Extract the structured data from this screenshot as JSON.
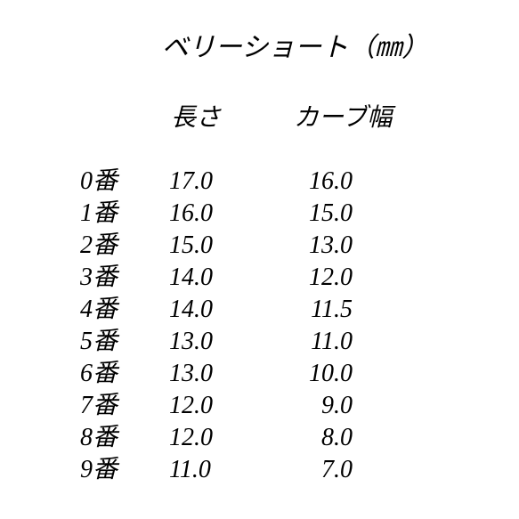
{
  "title": "ベリーショート（㎜）",
  "headers": {
    "length": "長さ",
    "curve": "カーブ幅"
  },
  "rows": [
    {
      "label": "0番",
      "length": "17.0",
      "curve": "16.0"
    },
    {
      "label": "1番",
      "length": "16.0",
      "curve": "15.0"
    },
    {
      "label": "2番",
      "length": "15.0",
      "curve": "13.0"
    },
    {
      "label": "3番",
      "length": "14.0",
      "curve": "12.0"
    },
    {
      "label": "4番",
      "length": "14.0",
      "curve": "11.5"
    },
    {
      "label": "5番",
      "length": "13.0",
      "curve": "11.0"
    },
    {
      "label": "6番",
      "length": "13.0",
      "curve": "10.0"
    },
    {
      "label": "7番",
      "length": "12.0",
      "curve": "9.0"
    },
    {
      "label": "8番",
      "length": "12.0",
      "curve": "8.0"
    },
    {
      "label": "9番",
      "length": "11.0",
      "curve": "7.0"
    }
  ],
  "styling": {
    "background_color": "#ffffff",
    "text_color": "#000000",
    "font_style": "italic",
    "font_family": "serif",
    "title_fontsize": 30,
    "header_fontsize": 28,
    "cell_fontsize": 28,
    "line_height": 36
  }
}
